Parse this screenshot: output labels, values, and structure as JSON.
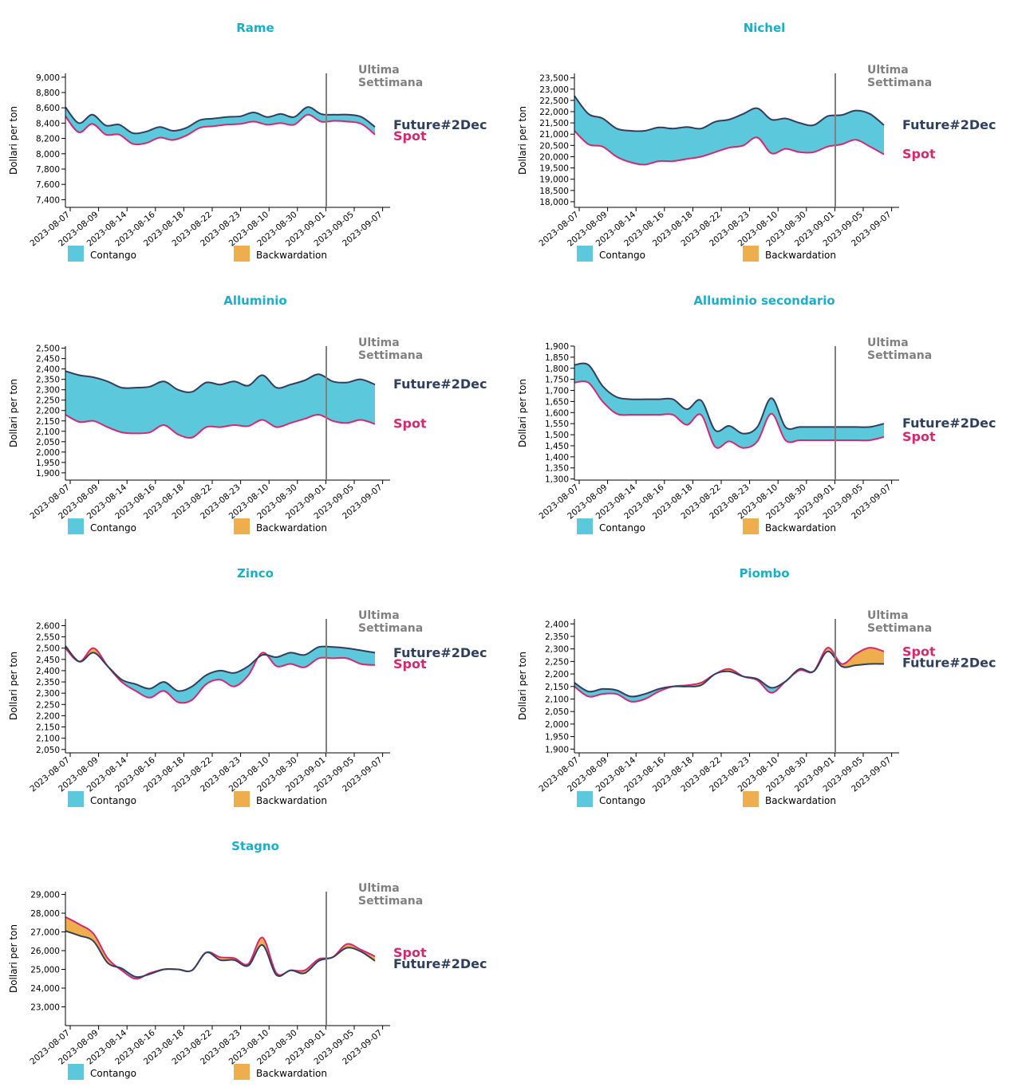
{
  "colors": {
    "title": "#1AAFC8",
    "contango": "#5BC8DC",
    "backwardation": "#EEAE4E",
    "future": "#2F3F5E",
    "spot": "#D5286F",
    "last_week_line": "#808080",
    "last_week_text": "#808080"
  },
  "ylabel": "Dollari per ton",
  "last_week_label": [
    "Ultima",
    "Settimana"
  ],
  "legend": {
    "contango": "Contango",
    "backwardation": "Backwardation"
  },
  "x_tick_labels": [
    "2023-08-07",
    "2023-08-09",
    "2023-08-14",
    "2023-08-16",
    "2023-08-18",
    "2023-08-22",
    "2023-08-23",
    "2023-08-10",
    "2023-08-30",
    "2023-09-01",
    "2023-09-05",
    "2023-09-07"
  ],
  "chart_data": [
    {
      "type": "area",
      "title": "Rame",
      "ylabel": "Dollari per ton",
      "ylim": [
        7300,
        9050
      ],
      "yticks": [
        7400,
        7600,
        7800,
        8000,
        8200,
        8400,
        8600,
        8800,
        9000
      ],
      "last_week_index": 9,
      "series": [
        {
          "name": "Future#2Dec",
          "values": [
            8610,
            8400,
            8510,
            8370,
            8380,
            8270,
            8290,
            8350,
            8300,
            8340,
            8440,
            8460,
            8480,
            8490,
            8540,
            8480,
            8520,
            8480,
            8610,
            8520,
            8510,
            8510,
            8480,
            8350
          ]
        },
        {
          "name": "Spot",
          "values": [
            8490,
            8280,
            8390,
            8250,
            8250,
            8130,
            8140,
            8210,
            8180,
            8240,
            8340,
            8360,
            8380,
            8390,
            8420,
            8380,
            8400,
            8380,
            8510,
            8420,
            8430,
            8420,
            8390,
            8250
          ]
        }
      ]
    },
    {
      "type": "area",
      "title": "Nichel",
      "ylabel": "Dollari per ton",
      "ylim": [
        17750,
        23700
      ],
      "yticks": [
        18000,
        18500,
        19000,
        19500,
        20000,
        20500,
        21000,
        21500,
        22000,
        22500,
        23000,
        23500
      ],
      "last_week_index": 9,
      "series": [
        {
          "name": "Future#2Dec",
          "values": [
            22700,
            21900,
            21700,
            21250,
            21150,
            21150,
            21300,
            21250,
            21320,
            21250,
            21550,
            21650,
            21900,
            22150,
            21650,
            21700,
            21500,
            21400,
            21800,
            21850,
            22050,
            21900,
            21400
          ]
        },
        {
          "name": "Spot",
          "values": [
            21150,
            20550,
            20450,
            20000,
            19750,
            19650,
            19800,
            19800,
            19900,
            20000,
            20200,
            20400,
            20500,
            20850,
            20150,
            20350,
            20200,
            20200,
            20450,
            20550,
            20750,
            20450,
            20100
          ]
        }
      ]
    },
    {
      "type": "area",
      "title": "Alluminio",
      "ylabel": "Dollari per ton",
      "ylim": [
        1865,
        2510
      ],
      "yticks": [
        1900,
        1950,
        2000,
        2050,
        2100,
        2150,
        2200,
        2250,
        2300,
        2350,
        2400,
        2450,
        2500
      ],
      "last_week_index": 9,
      "series": [
        {
          "name": "Future#2Dec",
          "values": [
            2390,
            2370,
            2360,
            2340,
            2310,
            2310,
            2315,
            2340,
            2300,
            2290,
            2335,
            2325,
            2340,
            2320,
            2370,
            2310,
            2325,
            2345,
            2375,
            2340,
            2335,
            2350,
            2325
          ]
        },
        {
          "name": "Spot",
          "values": [
            2180,
            2145,
            2150,
            2120,
            2095,
            2090,
            2095,
            2130,
            2085,
            2070,
            2120,
            2120,
            2130,
            2125,
            2155,
            2120,
            2140,
            2160,
            2180,
            2150,
            2140,
            2155,
            2135
          ]
        }
      ]
    },
    {
      "type": "area",
      "title": "Alluminio secondario",
      "ylabel": "Dollari per ton",
      "ylim": [
        1295,
        1900
      ],
      "yticks": [
        1300,
        1350,
        1400,
        1450,
        1500,
        1550,
        1600,
        1650,
        1700,
        1750,
        1800,
        1850,
        1900
      ],
      "last_week_index": 9,
      "series": [
        {
          "name": "Future#2Dec",
          "values": [
            1815,
            1815,
            1720,
            1670,
            1660,
            1660,
            1660,
            1660,
            1615,
            1655,
            1520,
            1540,
            1505,
            1535,
            1665,
            1535,
            1535,
            1535,
            1535,
            1535,
            1535,
            1535,
            1550
          ]
        },
        {
          "name": "Spot",
          "values": [
            1735,
            1735,
            1650,
            1595,
            1590,
            1590,
            1590,
            1590,
            1545,
            1590,
            1445,
            1470,
            1440,
            1470,
            1595,
            1475,
            1475,
            1475,
            1475,
            1475,
            1475,
            1475,
            1490
          ]
        }
      ]
    },
    {
      "type": "area",
      "title": "Zinco",
      "ylabel": "Dollari per ton",
      "ylim": [
        2035,
        2630
      ],
      "yticks": [
        2050,
        2100,
        2150,
        2200,
        2250,
        2300,
        2350,
        2400,
        2450,
        2500,
        2550,
        2600
      ],
      "last_week_index": 9,
      "series": [
        {
          "name": "Future#2Dec",
          "values": [
            2510,
            2440,
            2480,
            2420,
            2360,
            2340,
            2320,
            2350,
            2310,
            2330,
            2380,
            2400,
            2390,
            2420,
            2470,
            2460,
            2480,
            2470,
            2505,
            2505,
            2500,
            2490,
            2480
          ]
        },
        {
          "name": "Spot",
          "values": [
            2500,
            2440,
            2500,
            2420,
            2350,
            2310,
            2280,
            2310,
            2260,
            2270,
            2340,
            2360,
            2330,
            2380,
            2480,
            2420,
            2430,
            2415,
            2455,
            2455,
            2455,
            2430,
            2425
          ]
        }
      ]
    },
    {
      "type": "area",
      "title": "Piombo",
      "ylabel": "Dollari per ton",
      "ylim": [
        1885,
        2420
      ],
      "yticks": [
        1900,
        1950,
        2000,
        2050,
        2100,
        2150,
        2200,
        2250,
        2300,
        2350,
        2400
      ],
      "last_week_index": 9,
      "series": [
        {
          "name": "Future#2Dec",
          "values": [
            2165,
            2130,
            2140,
            2135,
            2110,
            2120,
            2140,
            2150,
            2150,
            2155,
            2200,
            2210,
            2190,
            2180,
            2145,
            2170,
            2220,
            2210,
            2290,
            2230,
            2235,
            2240,
            2240
          ]
        },
        {
          "name": "Spot",
          "values": [
            2150,
            2110,
            2120,
            2120,
            2090,
            2100,
            2130,
            2150,
            2155,
            2165,
            2200,
            2220,
            2190,
            2175,
            2125,
            2170,
            2215,
            2210,
            2305,
            2240,
            2280,
            2305,
            2290
          ]
        }
      ]
    },
    {
      "type": "area",
      "title": "Stagno",
      "ylabel": "Dollari per ton",
      "ylim": [
        22000,
        29150
      ],
      "yticks": [
        23000,
        24000,
        25000,
        26000,
        27000,
        28000,
        29000
      ],
      "last_week_index": 9,
      "series": [
        {
          "name": "Future#2Dec",
          "values": [
            27050,
            26800,
            26500,
            25350,
            25050,
            24600,
            24750,
            25000,
            25000,
            24950,
            25900,
            25500,
            25500,
            25200,
            26300,
            24700,
            24950,
            24800,
            25450,
            25650,
            26150,
            25950,
            25450
          ]
        },
        {
          "name": "Spot",
          "values": [
            27800,
            27400,
            26900,
            25600,
            24950,
            24500,
            24800,
            25000,
            25000,
            24950,
            25900,
            25650,
            25600,
            25300,
            26700,
            24800,
            24950,
            24950,
            25550,
            25650,
            26350,
            26050,
            25700
          ]
        }
      ]
    }
  ]
}
